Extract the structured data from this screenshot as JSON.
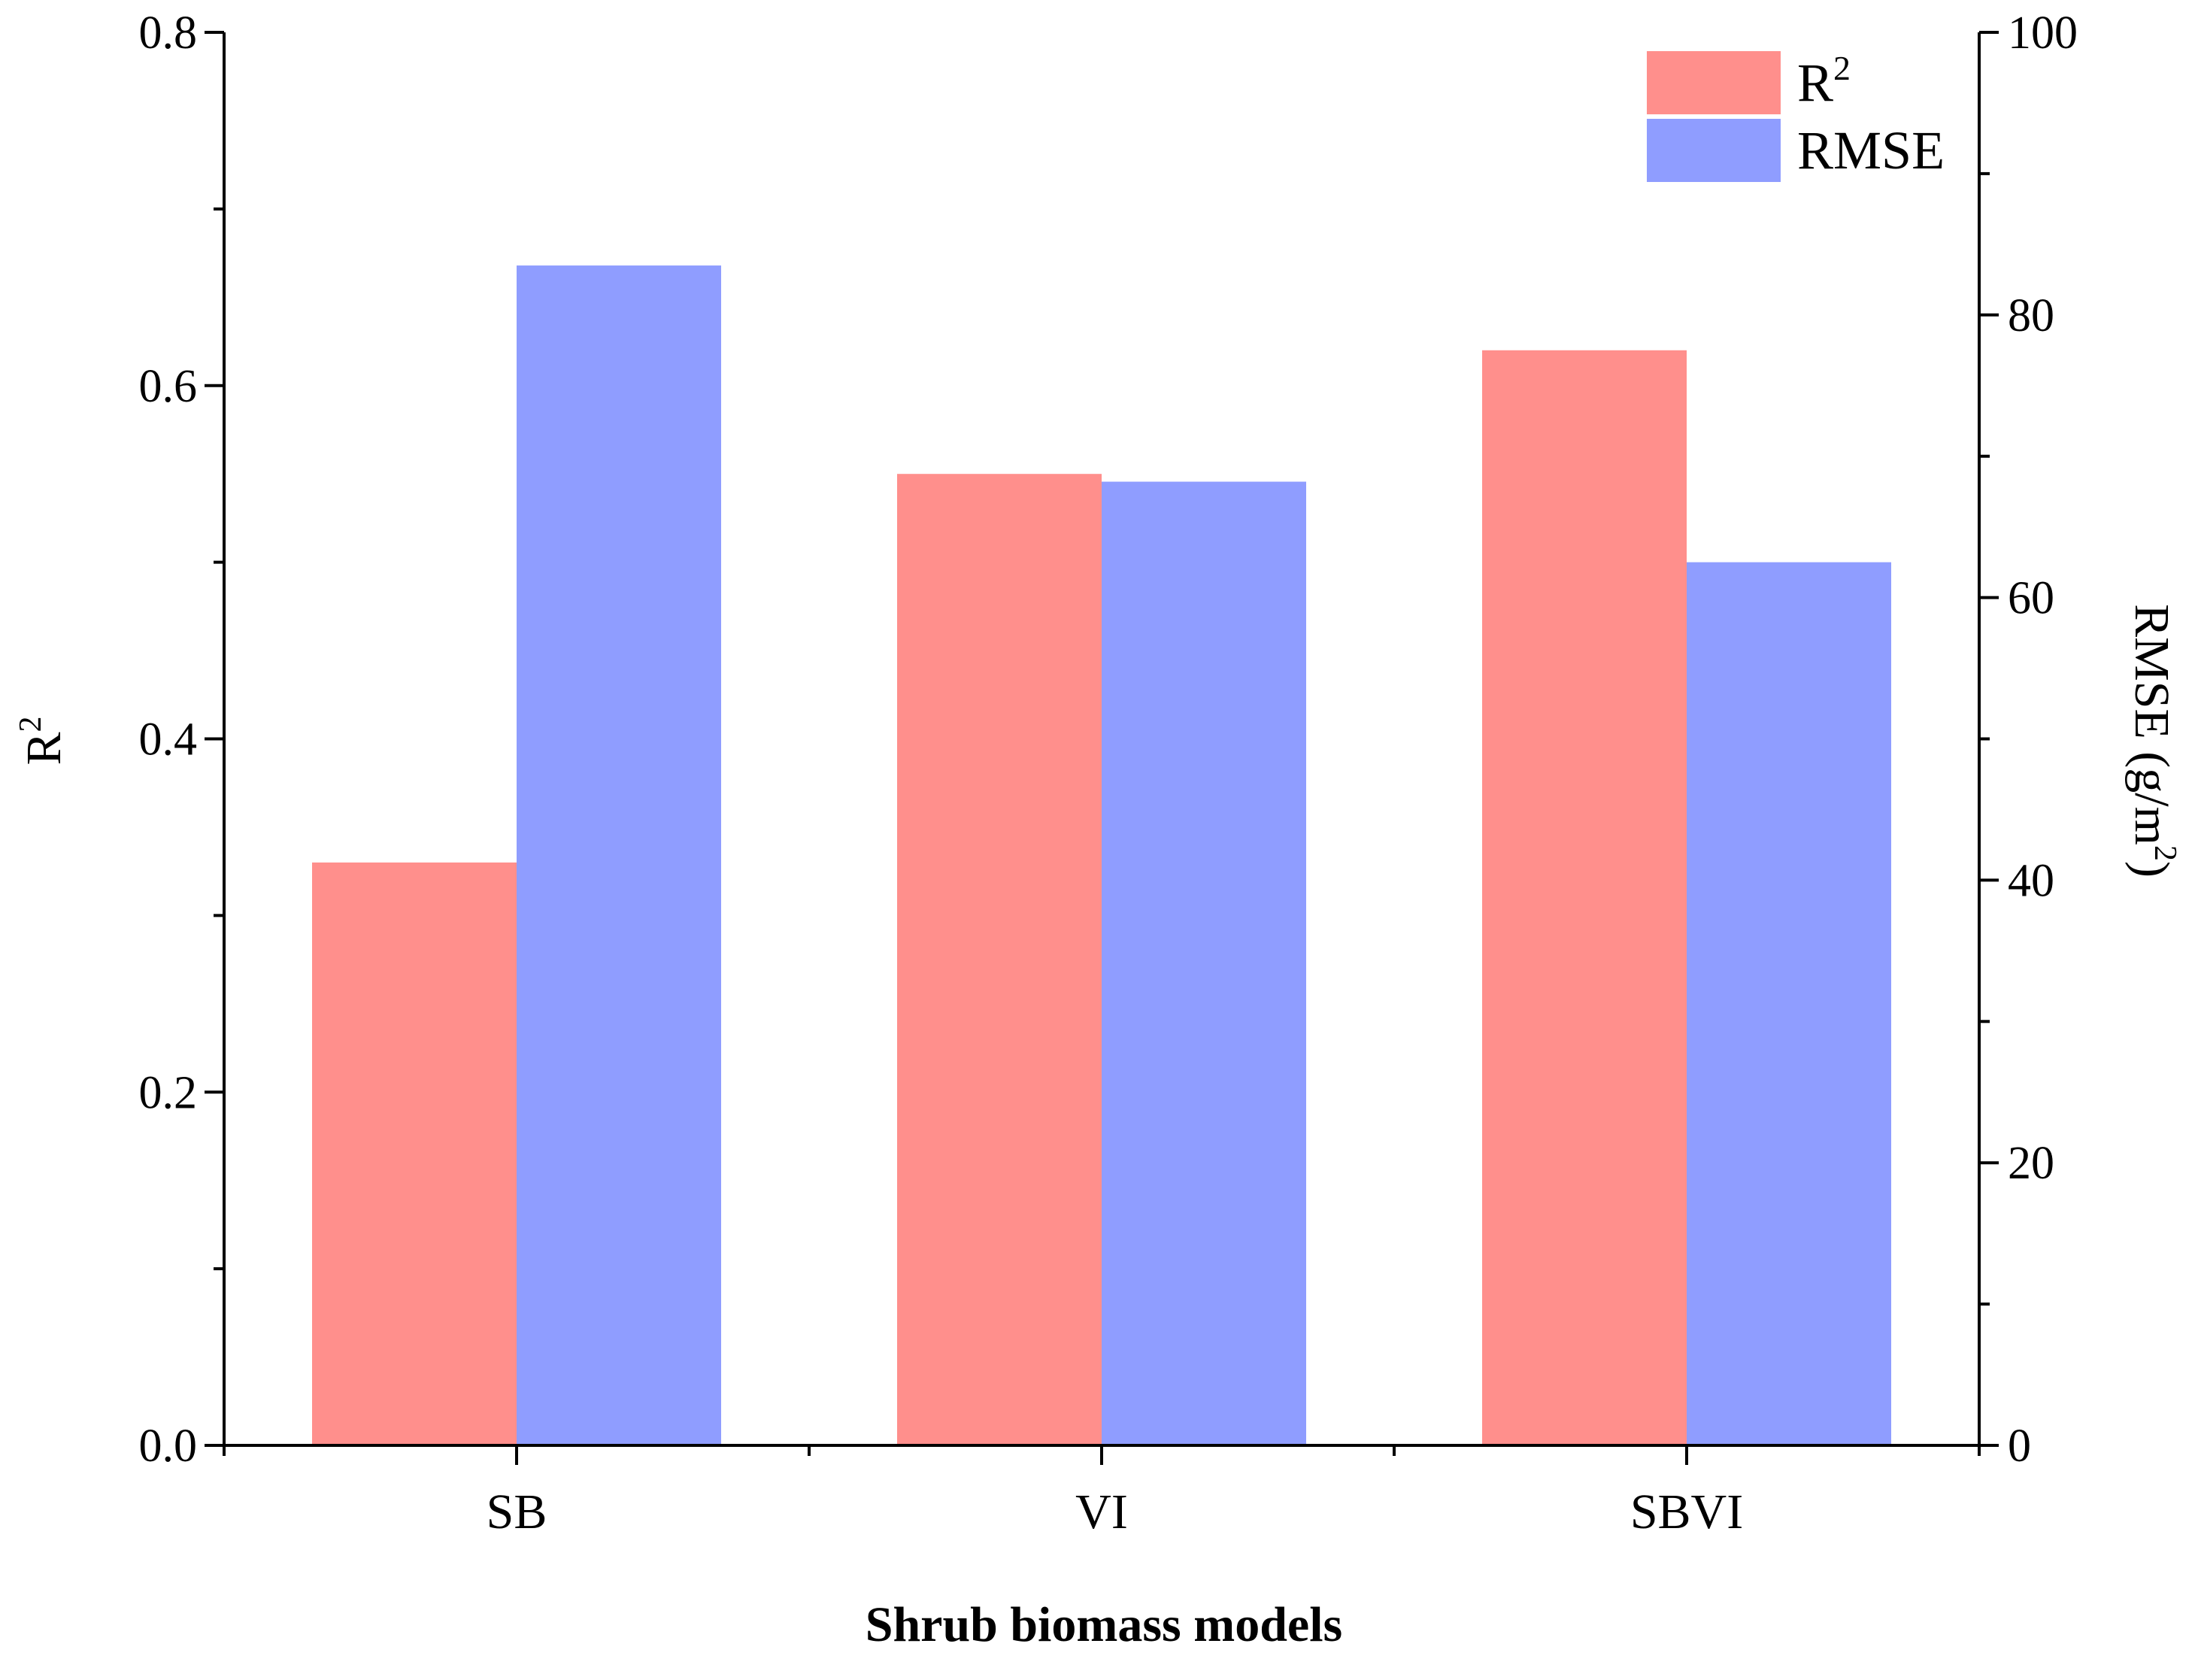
{
  "chart_data": {
    "type": "bar",
    "xlabel": "Shrub biomass models",
    "categories": [
      "SB",
      "VI",
      "SBVI"
    ],
    "series": [
      {
        "name": "R2",
        "axis": "left",
        "color": "#ff8f8c",
        "values": [
          0.33,
          0.55,
          0.62
        ]
      },
      {
        "name": "RMSE",
        "axis": "right",
        "color": "#8f9dff",
        "values": [
          83.5,
          68.2,
          62.5
        ]
      }
    ],
    "left_axis": {
      "label_main": "R",
      "label_sup": "2",
      "ylim": [
        0,
        0.8
      ],
      "ticks": [
        "0.0",
        "0.2",
        "0.4",
        "0.6",
        "0.8"
      ]
    },
    "right_axis": {
      "label_main": "RMSE (g/m",
      "label_sup": "2",
      "label_end": ")",
      "ylim": [
        0,
        100
      ],
      "ticks": [
        "0",
        "20",
        "40",
        "60",
        "80",
        "100"
      ]
    },
    "legend": {
      "position": "top-right",
      "entries": [
        {
          "label_main": "R",
          "label_sup": "2",
          "color": "#ff8f8c"
        },
        {
          "label_main": "RMSE",
          "label_sup": "",
          "color": "#8f9dff"
        }
      ]
    },
    "grid": false
  }
}
